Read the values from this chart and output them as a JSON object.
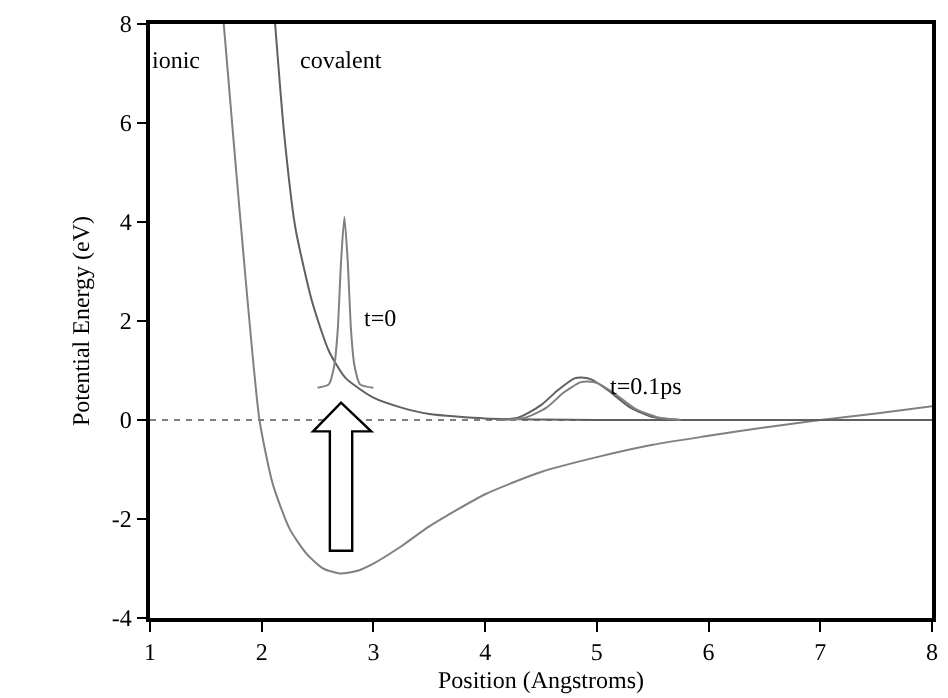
{
  "chart_data": {
    "type": "line",
    "xlabel": "Position (Angstroms)",
    "ylabel": "Potential Energy (eV)",
    "xlim": [
      1,
      8
    ],
    "xticks": [
      1,
      2,
      3,
      4,
      5,
      6,
      7,
      8
    ],
    "ylim": [
      -4,
      8
    ],
    "yticks": [
      -4,
      -2,
      0,
      2,
      4,
      6,
      8
    ],
    "grid": false,
    "legend": false,
    "marker": "none",
    "line_style": "solid",
    "series": [
      {
        "name": "ionic",
        "color": "#808080",
        "x": [
          1.66,
          1.75,
          1.85,
          1.98,
          2.1,
          2.25,
          2.4,
          2.55,
          2.7,
          2.85,
          3.0,
          3.25,
          3.5,
          4.0,
          4.5,
          5.0,
          5.5,
          6.0,
          6.5,
          7.0,
          7.5,
          8.0
        ],
        "values": [
          8,
          5.6,
          3,
          0,
          -1.3,
          -2.2,
          -2.7,
          -3.0,
          -3.1,
          -3.05,
          -2.9,
          -2.55,
          -2.15,
          -1.5,
          -1.05,
          -0.75,
          -0.5,
          -0.32,
          -0.15,
          0,
          0.13,
          0.28
        ]
      },
      {
        "name": "covalent",
        "color": "#606060",
        "x": [
          2.12,
          2.2,
          2.3,
          2.45,
          2.6,
          2.75,
          3.0,
          3.25,
          3.5,
          4.0,
          4.5,
          5.0,
          6.0,
          7.0,
          8.0
        ],
        "values": [
          8,
          5.8,
          3.9,
          2.4,
          1.4,
          0.85,
          0.45,
          0.25,
          0.12,
          0.03,
          0.01,
          0,
          0,
          0,
          0
        ]
      },
      {
        "name": "t=0",
        "color": "#808080",
        "x": [
          2.5,
          2.6,
          2.65,
          2.68,
          2.71,
          2.74,
          2.77,
          2.8,
          2.83,
          2.88,
          3.0
        ],
        "values": [
          0.65,
          0.72,
          1.1,
          1.8,
          3.2,
          4.1,
          3.2,
          1.8,
          1.1,
          0.72,
          0.65
        ]
      },
      {
        "name": "t=0.1ps",
        "color": "#606060",
        "x": [
          4.1,
          4.3,
          4.5,
          4.65,
          4.8,
          4.86,
          4.95,
          5.1,
          5.3,
          5.5,
          5.75
        ],
        "values": [
          0,
          0.05,
          0.3,
          0.6,
          0.84,
          0.86,
          0.82,
          0.6,
          0.25,
          0.06,
          0
        ]
      },
      {
        "color": "#808080",
        "x": [
          4.1,
          4.35,
          4.55,
          4.7,
          4.85,
          4.92,
          5.0,
          5.15,
          5.35,
          5.55,
          5.75
        ],
        "values": [
          0,
          0.04,
          0.25,
          0.55,
          0.76,
          0.78,
          0.75,
          0.55,
          0.22,
          0.05,
          0
        ]
      }
    ],
    "ref_lines": [
      {
        "axis": "y",
        "value": 0,
        "color": "#808080",
        "line_style": "dotted"
      }
    ]
  }
}
